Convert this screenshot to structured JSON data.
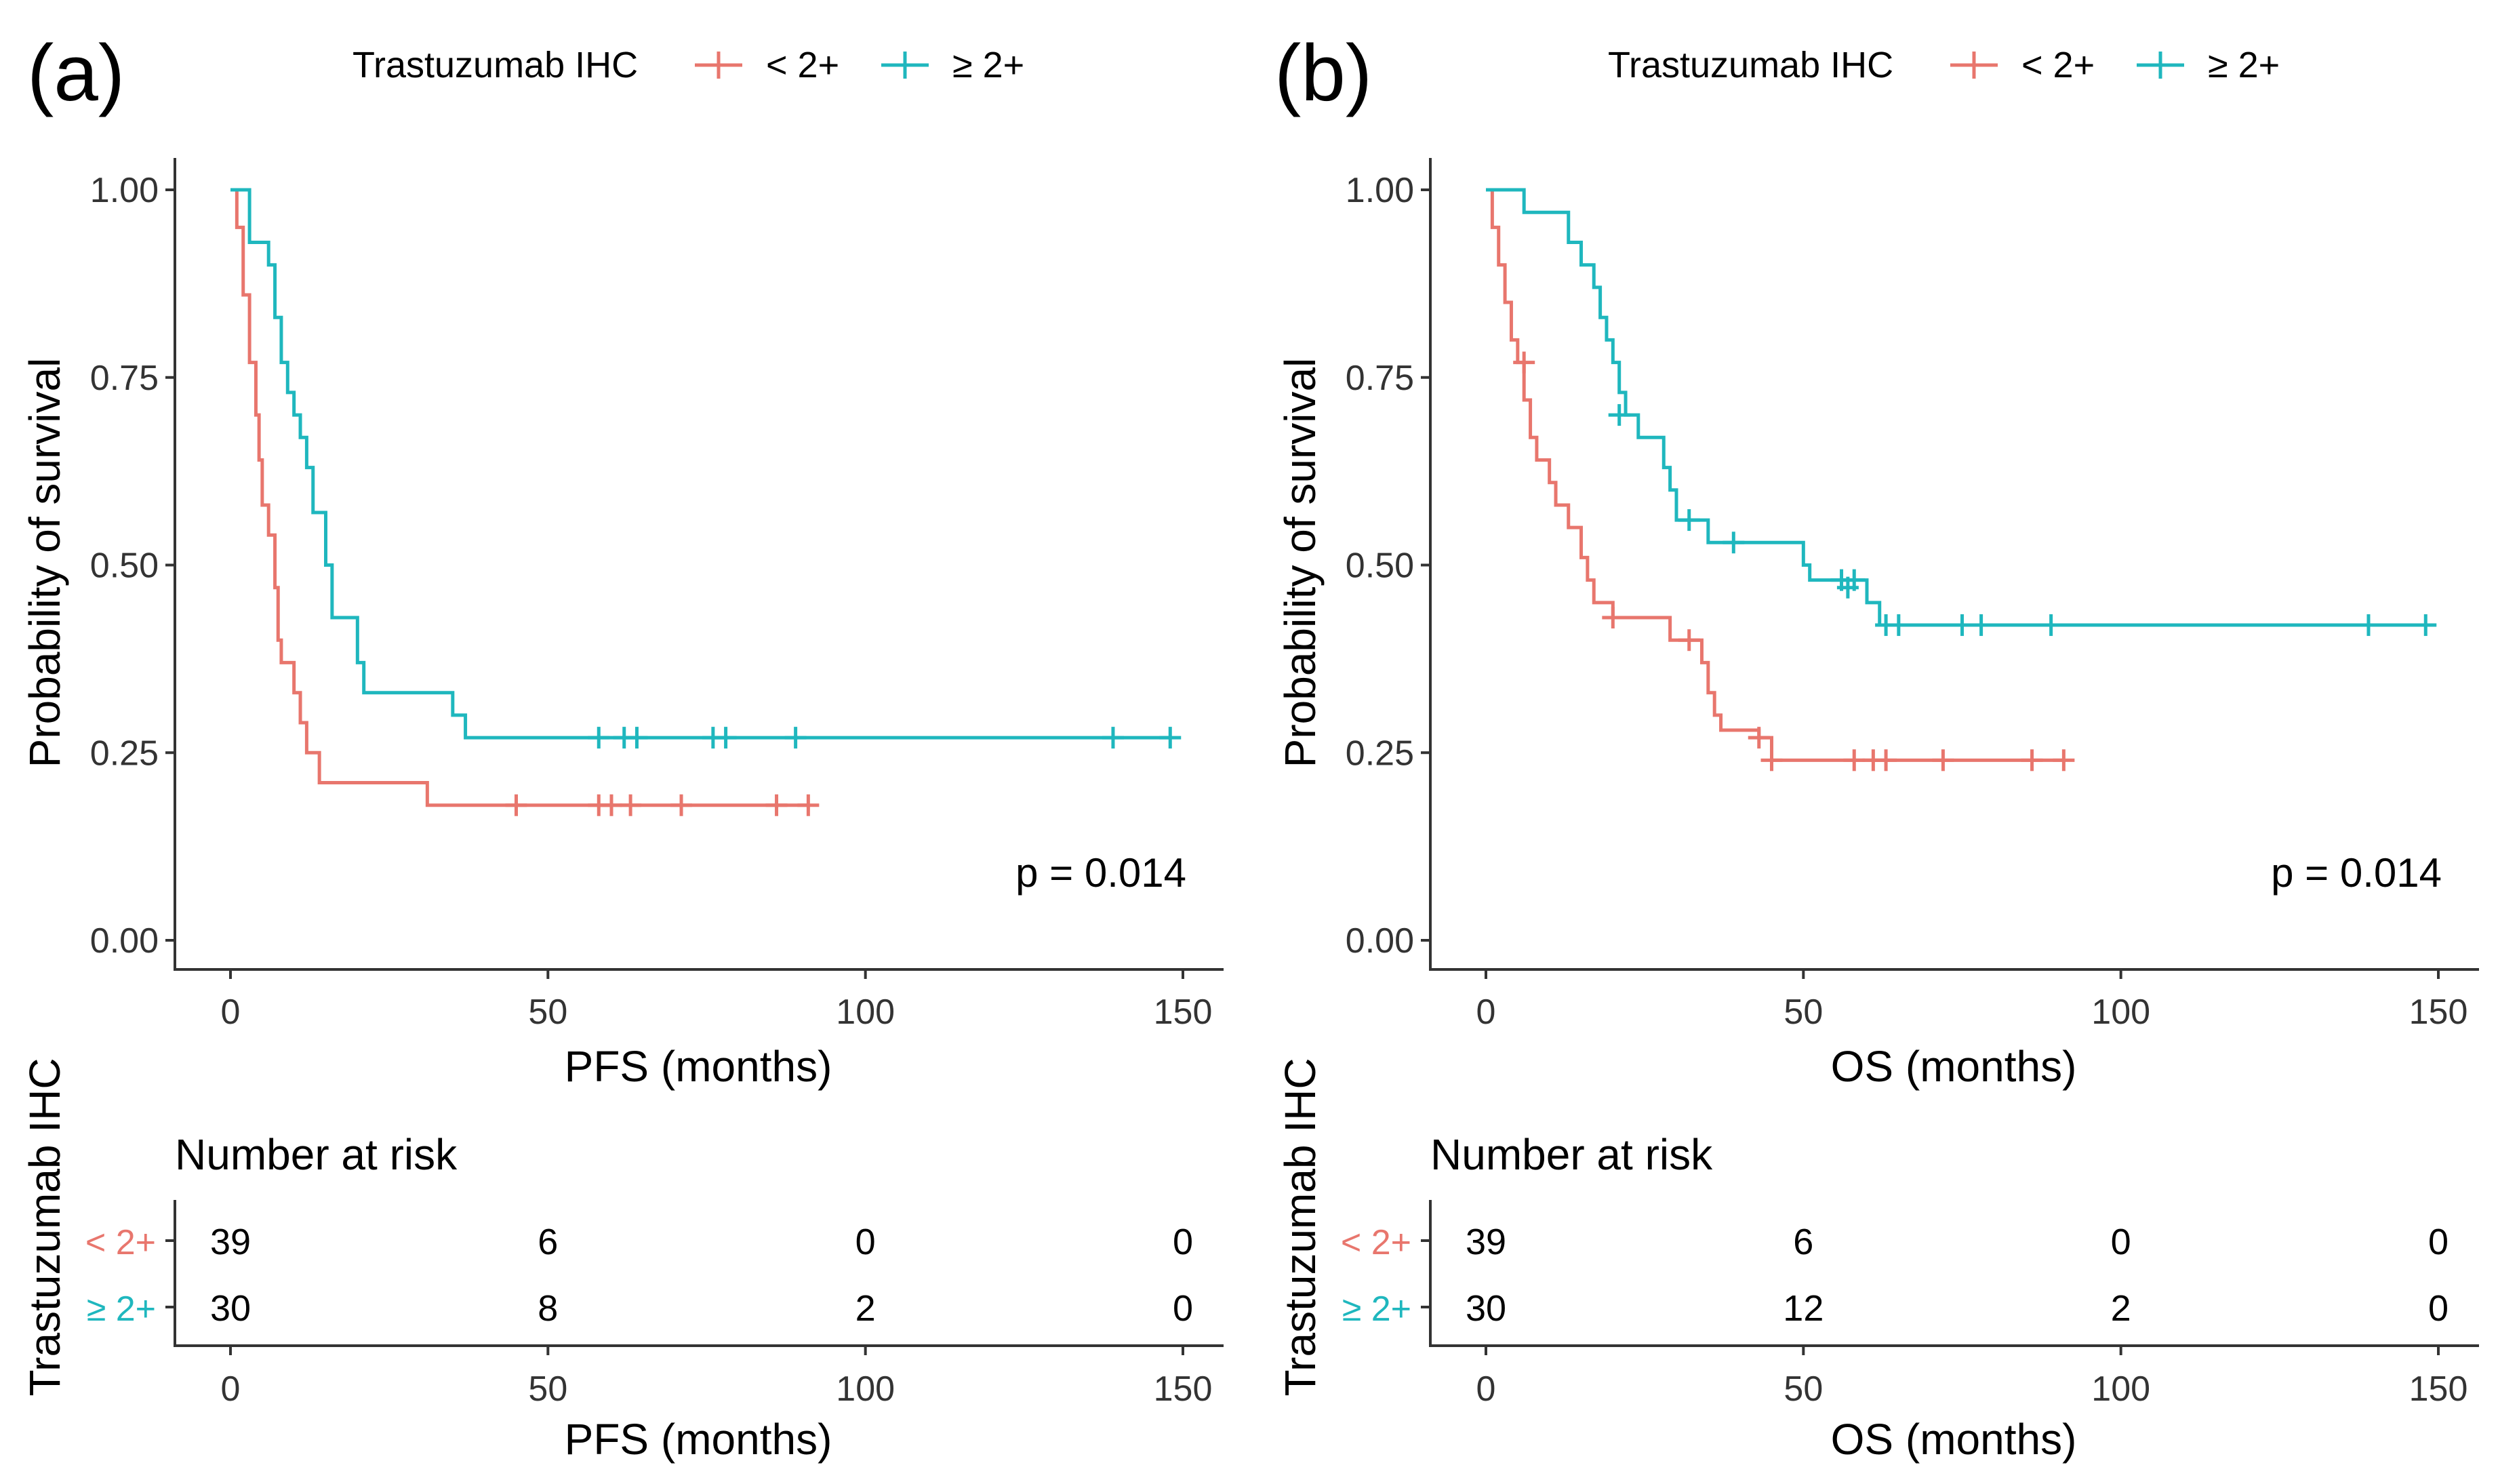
{
  "colors": {
    "below": "#E8766D",
    "above": "#1FB7BE",
    "axis": "#333333"
  },
  "figure": {
    "panels": [
      {
        "label": "(a)",
        "legend": {
          "title": "Trastuzumab IHC",
          "entries": [
            "< 2+",
            "≥ 2+"
          ]
        },
        "p_value": "p = 0.014",
        "risk_table": {
          "title": "Number at risk",
          "strata_title": "Trastuzumab IHC",
          "x_label": "PFS (months)"
        }
      },
      {
        "label": "(b)",
        "legend": {
          "title": "Trastuzumab IHC",
          "entries": [
            "< 2+",
            "≥ 2+"
          ]
        },
        "p_value": "p = 0.014",
        "risk_table": {
          "title": "Number at risk",
          "strata_title": "Trastuzumab IHC",
          "x_label": "OS (months)"
        }
      }
    ]
  },
  "chart_data": [
    {
      "type": "line",
      "subtype": "kaplan-meier",
      "title": "(a)",
      "xlabel": "PFS (months)",
      "ylabel": "Probability of survival",
      "xlim": [
        0,
        150
      ],
      "ylim": [
        0,
        1
      ],
      "xticks": [
        "0",
        "50",
        "100",
        "150"
      ],
      "yticks": [
        "0.00",
        "0.25",
        "0.50",
        "0.75",
        "1.00"
      ],
      "legend_title": "Trastuzumab IHC",
      "annotation": "p = 0.014",
      "series": [
        {
          "name": "< 2+",
          "color": "#E8766D",
          "steps": [
            [
              0,
              1.0
            ],
            [
              1,
              0.95
            ],
            [
              2,
              0.86
            ],
            [
              3,
              0.77
            ],
            [
              4,
              0.7
            ],
            [
              4.5,
              0.64
            ],
            [
              5,
              0.58
            ],
            [
              6,
              0.54
            ],
            [
              7,
              0.47
            ],
            [
              7.5,
              0.4
            ],
            [
              8,
              0.37
            ],
            [
              10,
              0.33
            ],
            [
              11,
              0.29
            ],
            [
              12,
              0.25
            ],
            [
              14,
              0.21
            ],
            [
              31,
              0.18
            ],
            [
              91,
              0.18
            ]
          ],
          "censored": [
            [
              45,
              0.18
            ],
            [
              58,
              0.18
            ],
            [
              60,
              0.18
            ],
            [
              63,
              0.18
            ],
            [
              71,
              0.18
            ],
            [
              86,
              0.18
            ],
            [
              91,
              0.18
            ]
          ]
        },
        {
          "name": "≥ 2+",
          "color": "#1FB7BE",
          "steps": [
            [
              0,
              1.0
            ],
            [
              3,
              0.93
            ],
            [
              6,
              0.9
            ],
            [
              7,
              0.83
            ],
            [
              8,
              0.77
            ],
            [
              9,
              0.73
            ],
            [
              10,
              0.7
            ],
            [
              11,
              0.67
            ],
            [
              12,
              0.63
            ],
            [
              13,
              0.57
            ],
            [
              15,
              0.5
            ],
            [
              16,
              0.43
            ],
            [
              20,
              0.37
            ],
            [
              21,
              0.33
            ],
            [
              35,
              0.3
            ],
            [
              37,
              0.27
            ],
            [
              148,
              0.27
            ]
          ],
          "censored": [
            [
              58,
              0.27
            ],
            [
              62,
              0.27
            ],
            [
              64,
              0.27
            ],
            [
              76,
              0.27
            ],
            [
              78,
              0.27
            ],
            [
              89,
              0.27
            ],
            [
              139,
              0.27
            ],
            [
              148,
              0.27
            ]
          ]
        }
      ],
      "risk_table": {
        "title": "Number at risk",
        "times": [
          0,
          50,
          100,
          150
        ],
        "xlabel": "PFS (months)",
        "rows": [
          {
            "label": "< 2+",
            "counts": [
              39,
              6,
              0,
              0
            ]
          },
          {
            "label": "≥ 2+",
            "counts": [
              30,
              8,
              2,
              0
            ]
          }
        ]
      }
    },
    {
      "type": "line",
      "subtype": "kaplan-meier",
      "title": "(b)",
      "xlabel": "OS (months)",
      "ylabel": "Probability of survival",
      "xlim": [
        0,
        150
      ],
      "ylim": [
        0,
        1
      ],
      "xticks": [
        "0",
        "50",
        "100",
        "150"
      ],
      "yticks": [
        "0.00",
        "0.25",
        "0.50",
        "0.75",
        "1.00"
      ],
      "legend_title": "Trastuzumab IHC",
      "annotation": "p = 0.014",
      "series": [
        {
          "name": "< 2+",
          "color": "#E8766D",
          "steps": [
            [
              0,
              1.0
            ],
            [
              1,
              0.95
            ],
            [
              2,
              0.9
            ],
            [
              3,
              0.85
            ],
            [
              4,
              0.8
            ],
            [
              5,
              0.77
            ],
            [
              6,
              0.72
            ],
            [
              7,
              0.67
            ],
            [
              8,
              0.64
            ],
            [
              10,
              0.61
            ],
            [
              11,
              0.58
            ],
            [
              13,
              0.55
            ],
            [
              15,
              0.51
            ],
            [
              16,
              0.48
            ],
            [
              17,
              0.45
            ],
            [
              20,
              0.43
            ],
            [
              29,
              0.4
            ],
            [
              34,
              0.37
            ],
            [
              35,
              0.33
            ],
            [
              36,
              0.3
            ],
            [
              37,
              0.28
            ],
            [
              43,
              0.27
            ],
            [
              45,
              0.24
            ],
            [
              91,
              0.24
            ]
          ],
          "censored": [
            [
              6,
              0.77
            ],
            [
              20,
              0.43
            ],
            [
              32,
              0.4
            ],
            [
              43,
              0.27
            ],
            [
              45,
              0.24
            ],
            [
              58,
              0.24
            ],
            [
              61,
              0.24
            ],
            [
              63,
              0.24
            ],
            [
              72,
              0.24
            ],
            [
              86,
              0.24
            ],
            [
              91,
              0.24
            ]
          ]
        },
        {
          "name": "≥ 2+",
          "color": "#1FB7BE",
          "steps": [
            [
              0,
              1.0
            ],
            [
              6,
              0.97
            ],
            [
              13,
              0.93
            ],
            [
              15,
              0.9
            ],
            [
              17,
              0.87
            ],
            [
              18,
              0.83
            ],
            [
              19,
              0.8
            ],
            [
              20,
              0.77
            ],
            [
              21,
              0.73
            ],
            [
              22,
              0.7
            ],
            [
              24,
              0.67
            ],
            [
              28,
              0.63
            ],
            [
              29,
              0.6
            ],
            [
              30,
              0.56
            ],
            [
              35,
              0.53
            ],
            [
              50,
              0.5
            ],
            [
              51,
              0.48
            ],
            [
              60,
              0.45
            ],
            [
              62,
              0.42
            ],
            [
              148,
              0.42
            ]
          ],
          "censored": [
            [
              21,
              0.7
            ],
            [
              32,
              0.56
            ],
            [
              39,
              0.53
            ],
            [
              56,
              0.48
            ],
            [
              57,
              0.47
            ],
            [
              58,
              0.48
            ],
            [
              63,
              0.42
            ],
            [
              65,
              0.42
            ],
            [
              75,
              0.42
            ],
            [
              78,
              0.42
            ],
            [
              89,
              0.42
            ],
            [
              139,
              0.42
            ],
            [
              148,
              0.42
            ]
          ]
        }
      ],
      "risk_table": {
        "title": "Number at risk",
        "times": [
          0,
          50,
          100,
          150
        ],
        "xlabel": "OS (months)",
        "rows": [
          {
            "label": "< 2+",
            "counts": [
              39,
              6,
              0,
              0
            ]
          },
          {
            "label": "≥ 2+",
            "counts": [
              30,
              12,
              2,
              0
            ]
          }
        ]
      }
    }
  ]
}
